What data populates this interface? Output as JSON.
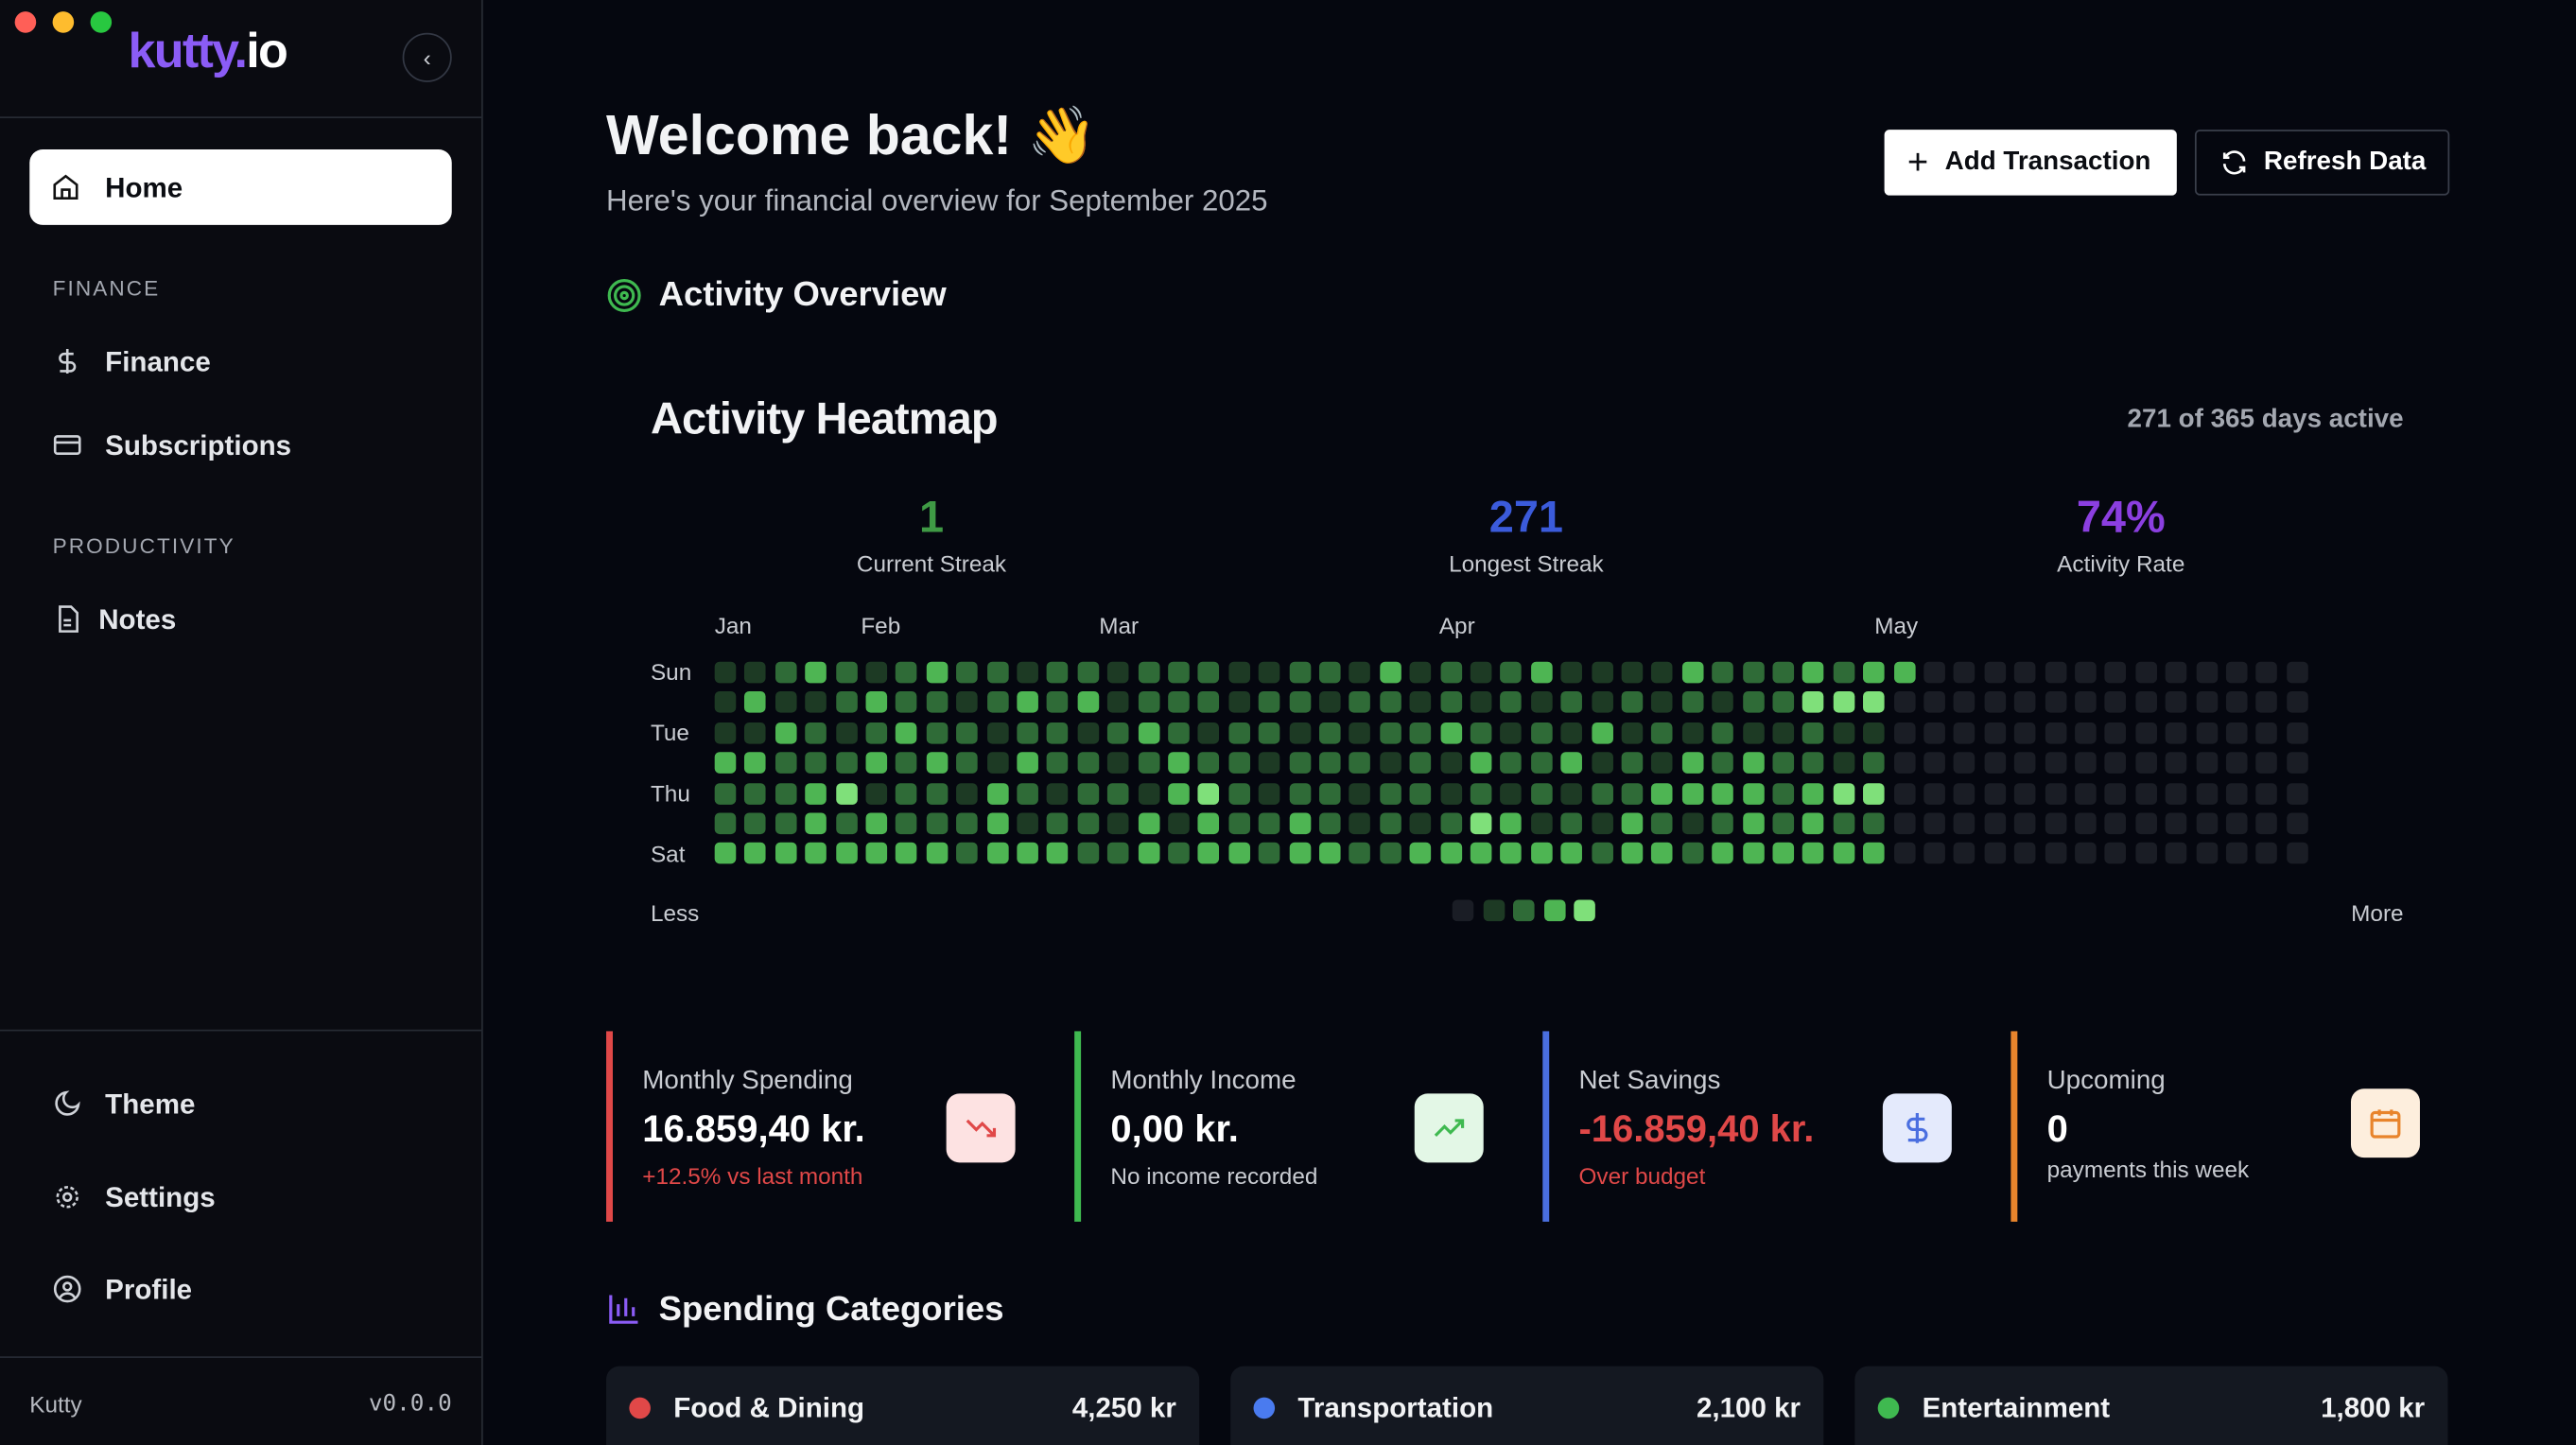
{
  "sidebar": {
    "logo_parts": [
      "kutty",
      ".",
      "io"
    ],
    "home": "Home",
    "sections": [
      {
        "title": "FINANCE",
        "items": [
          "Finance",
          "Subscriptions"
        ]
      },
      {
        "title": "PRODUCTIVITY",
        "items": [
          "Notes"
        ]
      }
    ],
    "bottom": [
      "Theme",
      "Settings",
      "Profile"
    ],
    "footer": {
      "name": "Kutty",
      "version": "v0.0.0"
    }
  },
  "header": {
    "title": "Welcome back! 👋",
    "subtitle": "Here's your financial overview for September 2025",
    "buttons": [
      "Add Transaction",
      "Refresh Data"
    ]
  },
  "activity": {
    "section_title": "Activity Overview",
    "heatmap_title": "Activity Heatmap",
    "summary": "271 of 365 days active",
    "stats": [
      {
        "value": "1",
        "label": "Current Streak",
        "color": "#3f9a45"
      },
      {
        "value": "271",
        "label": "Longest Streak",
        "color": "#3b5bdb"
      },
      {
        "value": "74%",
        "label": "Activity Rate",
        "color": "#8b3fe0"
      }
    ],
    "months": [
      "Jan",
      "Feb",
      "Mar",
      "Apr",
      "May"
    ],
    "days": [
      "Sun",
      "Tue",
      "Thu",
      "Sat"
    ],
    "level_colors": [
      "#1a1d25",
      "#1d3a24",
      "#2f6b37",
      "#4eb553",
      "#7fe07a"
    ],
    "levels": [
      [
        1,
        1,
        2,
        3,
        2,
        1,
        2,
        3,
        2,
        2,
        1,
        2,
        2,
        1,
        2,
        2,
        2,
        1,
        1,
        2,
        2,
        1,
        3,
        1,
        2,
        1,
        2,
        3,
        1,
        1,
        1,
        1,
        3,
        2,
        2,
        2,
        3,
        2,
        3,
        3,
        0,
        0,
        0,
        0,
        0,
        0,
        0,
        0,
        0,
        0,
        0,
        0,
        0
      ],
      [
        1,
        3,
        1,
        1,
        2,
        3,
        2,
        2,
        1,
        2,
        3,
        2,
        3,
        1,
        2,
        2,
        2,
        1,
        2,
        2,
        1,
        2,
        2,
        1,
        2,
        1,
        2,
        1,
        2,
        1,
        2,
        1,
        2,
        1,
        2,
        2,
        4,
        4,
        4,
        0,
        0,
        0,
        0,
        0,
        0,
        0,
        0,
        0,
        0,
        0,
        0,
        0,
        0
      ],
      [
        1,
        1,
        3,
        2,
        1,
        2,
        3,
        2,
        2,
        1,
        2,
        2,
        1,
        2,
        3,
        2,
        1,
        2,
        2,
        1,
        2,
        1,
        2,
        2,
        3,
        2,
        1,
        2,
        1,
        3,
        1,
        2,
        1,
        2,
        1,
        1,
        2,
        1,
        1,
        0,
        0,
        0,
        0,
        0,
        0,
        0,
        0,
        0,
        0,
        0,
        0,
        0,
        0
      ],
      [
        3,
        3,
        2,
        2,
        2,
        3,
        2,
        3,
        2,
        1,
        3,
        2,
        2,
        1,
        2,
        3,
        2,
        2,
        1,
        2,
        2,
        2,
        1,
        2,
        1,
        3,
        2,
        2,
        3,
        1,
        2,
        1,
        3,
        2,
        3,
        2,
        2,
        1,
        2,
        0,
        0,
        0,
        0,
        0,
        0,
        0,
        0,
        0,
        0,
        0,
        0,
        0,
        0
      ],
      [
        2,
        2,
        2,
        3,
        4,
        1,
        2,
        2,
        1,
        3,
        2,
        1,
        2,
        2,
        1,
        3,
        4,
        2,
        1,
        2,
        2,
        1,
        2,
        2,
        1,
        2,
        1,
        2,
        1,
        2,
        2,
        3,
        3,
        3,
        3,
        2,
        3,
        4,
        4,
        0,
        0,
        0,
        0,
        0,
        0,
        0,
        0,
        0,
        0,
        0,
        0,
        0,
        0
      ],
      [
        2,
        2,
        2,
        3,
        2,
        3,
        2,
        2,
        2,
        3,
        1,
        2,
        2,
        1,
        3,
        1,
        3,
        2,
        2,
        3,
        2,
        1,
        2,
        1,
        2,
        4,
        3,
        1,
        2,
        1,
        3,
        2,
        1,
        2,
        3,
        2,
        3,
        2,
        2,
        0,
        0,
        0,
        0,
        0,
        0,
        0,
        0,
        0,
        0,
        0,
        0,
        0,
        0
      ],
      [
        3,
        3,
        3,
        3,
        3,
        3,
        3,
        3,
        2,
        3,
        3,
        3,
        2,
        2,
        3,
        2,
        3,
        3,
        2,
        3,
        3,
        2,
        2,
        3,
        3,
        3,
        3,
        3,
        3,
        2,
        3,
        3,
        2,
        3,
        3,
        3,
        3,
        3,
        3,
        0,
        0,
        0,
        0,
        0,
        0,
        0,
        0,
        0,
        0,
        0,
        0,
        0,
        0
      ]
    ],
    "legend": [
      "Less",
      "More"
    ]
  },
  "cards": [
    {
      "title": "Monthly Spending",
      "value": "16.859,40 kr.",
      "note": "+12.5% vs last month",
      "color": "#e04848"
    },
    {
      "title": "Monthly Income",
      "value": "0,00 kr.",
      "note": "No income recorded",
      "color": "#3fb950"
    },
    {
      "title": "Net Savings",
      "value": "-16.859,40 kr.",
      "note": "Over budget",
      "color": "#4a6fe0"
    },
    {
      "title": "Upcoming",
      "value": "0",
      "note": "payments this week",
      "color": "#e8842c"
    }
  ],
  "categories": {
    "title": "Spending Categories",
    "items": [
      {
        "name": "Food & Dining",
        "amount": "4,250 kr",
        "color": "#e04848"
      },
      {
        "name": "Transportation",
        "amount": "2,100 kr",
        "color": "#4a7bef"
      },
      {
        "name": "Entertainment",
        "amount": "1,800 kr",
        "color": "#3fb950"
      }
    ]
  }
}
